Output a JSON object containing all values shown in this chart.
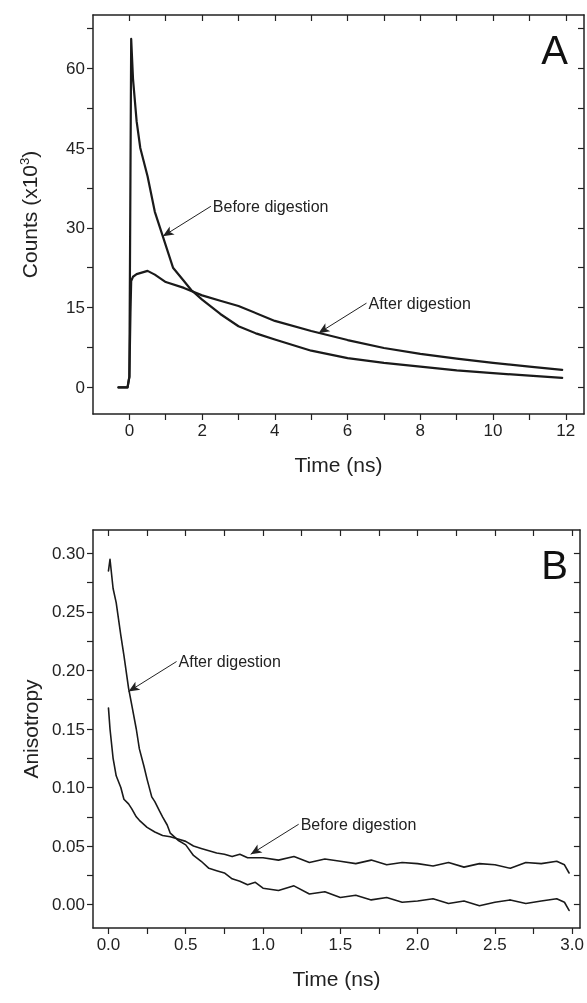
{
  "chart_data": [
    {
      "type": "line",
      "title": "A",
      "xlabel": "Time (ns)",
      "ylabel": "Counts (x10$^{3}$)",
      "xlim": [
        -1,
        12.5
      ],
      "ylim": [
        -5,
        70
      ],
      "xticks": [
        0,
        {
          "value": 1,
          "label": null
        },
        2,
        {
          "value": 3,
          "label": null
        },
        4,
        {
          "value": 5,
          "label": null
        },
        6,
        {
          "value": 7,
          "label": null
        },
        8,
        {
          "value": 9,
          "label": null
        },
        10,
        {
          "value": 11,
          "label": null
        },
        12
      ],
      "yticks": [
        0,
        {
          "value": 7.5,
          "label": null
        },
        15,
        {
          "value": 22.5,
          "label": null
        },
        30,
        {
          "value": 37.5,
          "label": null
        },
        45,
        {
          "value": 52.5,
          "label": null
        },
        60,
        {
          "value": 67.5,
          "label": null
        }
      ],
      "grid": false,
      "marker": "none",
      "line_style": "solid",
      "series": [
        {
          "color": "#1a1a1a",
          "x": [
            -0.3,
            -0.05,
            0,
            0.03,
            0.05,
            0.1,
            0.2,
            0.3,
            0.5,
            0.7,
            0.92,
            1.2,
            1.5,
            1.7,
            2,
            2.5,
            3,
            3.5,
            4,
            5,
            6,
            7,
            8,
            9,
            10,
            11,
            11.9
          ],
          "values": [
            0,
            0,
            2,
            40,
            65.5,
            58,
            50,
            45,
            39.7,
            33,
            28.4,
            22.5,
            20,
            18.3,
            16.5,
            13.8,
            11.5,
            10.1,
            9,
            6.9,
            5.5,
            4.6,
            3.9,
            3.2,
            2.7,
            2.2,
            1.8
          ]
        },
        {
          "color": "#1a1a1a",
          "x": [
            -0.3,
            -0.05,
            0,
            0.03,
            0.05,
            0.1,
            0.2,
            0.5,
            0.7,
            1,
            1.5,
            2,
            2.5,
            3,
            4,
            5,
            6,
            7,
            8,
            9,
            10,
            11,
            11.9
          ],
          "values": [
            0,
            0,
            2,
            14,
            20,
            20.8,
            21.3,
            21.9,
            21.2,
            19.8,
            18.7,
            17.3,
            16.3,
            15.3,
            12.5,
            10.6,
            8.9,
            7.4,
            6.3,
            5.4,
            4.6,
            3.9,
            3.3
          ]
        }
      ],
      "annotations": [
        {
          "text": "Before digestion",
          "x": 0.92,
          "y": 28.4
        },
        {
          "text": "After digestion",
          "x": 5.2,
          "y": 10.2
        }
      ]
    },
    {
      "type": "line",
      "title": "B",
      "xlabel": "Time (ns)",
      "ylabel": "Anisotropy",
      "xlim": [
        -0.1,
        3.05
      ],
      "ylim": [
        -0.02,
        0.32
      ],
      "xticks": [
        {
          "value": 0,
          "label": "0.0"
        },
        {
          "value": 0.25,
          "label": null
        },
        0.5,
        {
          "value": 0.75,
          "label": null
        },
        {
          "value": 1,
          "label": "1.0"
        },
        {
          "value": 1.25,
          "label": null
        },
        1.5,
        {
          "value": 1.75,
          "label": null
        },
        {
          "value": 2,
          "label": "2.0"
        },
        {
          "value": 2.25,
          "label": null
        },
        2.5,
        {
          "value": 2.75,
          "label": null
        },
        {
          "value": 3,
          "label": "3.0"
        }
      ],
      "yticks": [
        {
          "value": 0,
          "label": "0.00"
        },
        {
          "value": 0.025,
          "label": null
        },
        0.05,
        {
          "value": 0.075,
          "label": null
        },
        {
          "value": 0.1,
          "label": "0.10"
        },
        {
          "value": 0.125,
          "label": null
        },
        0.15,
        {
          "value": 0.175,
          "label": null
        },
        {
          "value": 0.2,
          "label": "0.20"
        },
        {
          "value": 0.225,
          "label": null
        },
        0.25,
        {
          "value": 0.275,
          "label": null
        },
        {
          "value": 0.3,
          "label": "0.30"
        }
      ],
      "grid": false,
      "marker": "none",
      "line_style": "solid",
      "series": [
        {
          "color": "#1a1a1a",
          "x": [
            0,
            0.01,
            0.03,
            0.05,
            0.08,
            0.1,
            0.13,
            0.15,
            0.18,
            0.2,
            0.23,
            0.25,
            0.28,
            0.3,
            0.33,
            0.35,
            0.38,
            0.4,
            0.45,
            0.5,
            0.55,
            0.6,
            0.65,
            0.7,
            0.75,
            0.8,
            0.85,
            0.9,
            0.95,
            1,
            1.1,
            1.2,
            1.3,
            1.4,
            1.5,
            1.6,
            1.7,
            1.8,
            1.9,
            2,
            2.1,
            2.2,
            2.3,
            2.4,
            2.5,
            2.6,
            2.7,
            2.8,
            2.9,
            2.95,
            2.98
          ],
          "values": [
            0.285,
            0.295,
            0.27,
            0.258,
            0.23,
            0.213,
            0.185,
            0.171,
            0.15,
            0.133,
            0.118,
            0.107,
            0.092,
            0.088,
            0.08,
            0.075,
            0.068,
            0.061,
            0.055,
            0.051,
            0.042,
            0.037,
            0.031,
            0.029,
            0.027,
            0.022,
            0.02,
            0.017,
            0.019,
            0.014,
            0.012,
            0.016,
            0.009,
            0.011,
            0.006,
            0.008,
            0.004,
            0.006,
            0.002,
            0.003,
            0.005,
            0.001,
            0.003,
            -0.001,
            0.002,
            0.004,
            0.001,
            0.003,
            0.005,
            0.002,
            -0.005
          ]
        },
        {
          "color": "#1a1a1a",
          "x": [
            0,
            0.01,
            0.03,
            0.05,
            0.08,
            0.1,
            0.13,
            0.15,
            0.18,
            0.2,
            0.25,
            0.3,
            0.35,
            0.4,
            0.45,
            0.5,
            0.55,
            0.6,
            0.65,
            0.7,
            0.75,
            0.8,
            0.85,
            0.9,
            1,
            1.1,
            1.2,
            1.3,
            1.4,
            1.5,
            1.6,
            1.7,
            1.8,
            1.9,
            2,
            2.1,
            2.2,
            2.3,
            2.4,
            2.5,
            2.6,
            2.7,
            2.8,
            2.9,
            2.95,
            2.98
          ],
          "values": [
            0.168,
            0.15,
            0.125,
            0.11,
            0.1,
            0.09,
            0.086,
            0.082,
            0.075,
            0.072,
            0.066,
            0.062,
            0.059,
            0.058,
            0.056,
            0.054,
            0.05,
            0.048,
            0.046,
            0.044,
            0.043,
            0.041,
            0.043,
            0.04,
            0.04,
            0.038,
            0.041,
            0.036,
            0.039,
            0.037,
            0.035,
            0.038,
            0.034,
            0.036,
            0.035,
            0.033,
            0.036,
            0.032,
            0.035,
            0.034,
            0.031,
            0.036,
            0.035,
            0.037,
            0.034,
            0.027
          ]
        }
      ],
      "annotations": [
        {
          "text": "After digestion",
          "x": 0.13,
          "y": 0.182
        },
        {
          "text": "Before digestion",
          "x": 0.92,
          "y": 0.043
        }
      ]
    }
  ]
}
